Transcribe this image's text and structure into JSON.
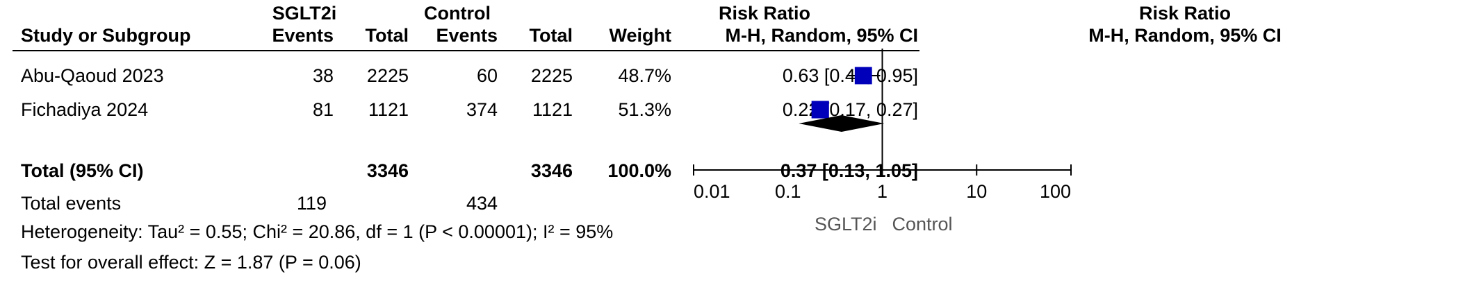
{
  "headers": {
    "group1": "SGLT2i",
    "group2": "Control",
    "table_effect": "Risk Ratio",
    "plot_effect": "Risk Ratio",
    "study_col": "Study or Subgroup",
    "events": "Events",
    "total": "Total",
    "weight": "Weight",
    "method": "M-H, Random, 95% CI",
    "plot_method": "M-H, Random, 95% CI"
  },
  "studies": [
    {
      "name": "Abu-Qaoud 2023",
      "e1": "38",
      "t1": "2225",
      "e2": "60",
      "t2": "2225",
      "weight": "48.7%",
      "ci": "0.63 [0.42, 0.95]"
    },
    {
      "name": "Fichadiya 2024",
      "e1": "81",
      "t1": "1121",
      "e2": "374",
      "t2": "1121",
      "weight": "51.3%",
      "ci": "0.22 [0.17, 0.27]"
    }
  ],
  "total": {
    "label": "Total (95% CI)",
    "t1": "3346",
    "t2": "3346",
    "weight": "100.0%",
    "ci": "0.37 [0.13, 1.05]"
  },
  "events_row": {
    "label": "Total events",
    "e1": "119",
    "e2": "434"
  },
  "heterogeneity": "Heterogeneity: Tau² = 0.55; Chi² = 20.86, df = 1 (P < 0.00001); I² = 95%",
  "overall_test": "Test for overall effect: Z = 1.87 (P = 0.06)",
  "axis": {
    "ticks": [
      "0.01",
      "0.1",
      "1",
      "10",
      "100"
    ],
    "favours_left": "SGLT2i",
    "favours_right": "Control"
  },
  "colors": {
    "study_marker": "#0000bb",
    "pooled_diamond": "#000000"
  },
  "chart_data": {
    "type": "scatter",
    "scale": "log",
    "xlim": [
      0.01,
      100
    ],
    "reference_line": 1,
    "points": [
      {
        "label": "Abu-Qaoud 2023",
        "rr": 0.63,
        "lower": 0.42,
        "upper": 0.95,
        "weight": 48.7
      },
      {
        "label": "Fichadiya 2024",
        "rr": 0.22,
        "lower": 0.17,
        "upper": 0.27,
        "weight": 51.3
      }
    ],
    "pooled": {
      "label": "Total (95% CI)",
      "rr": 0.37,
      "lower": 0.13,
      "upper": 1.05
    }
  }
}
